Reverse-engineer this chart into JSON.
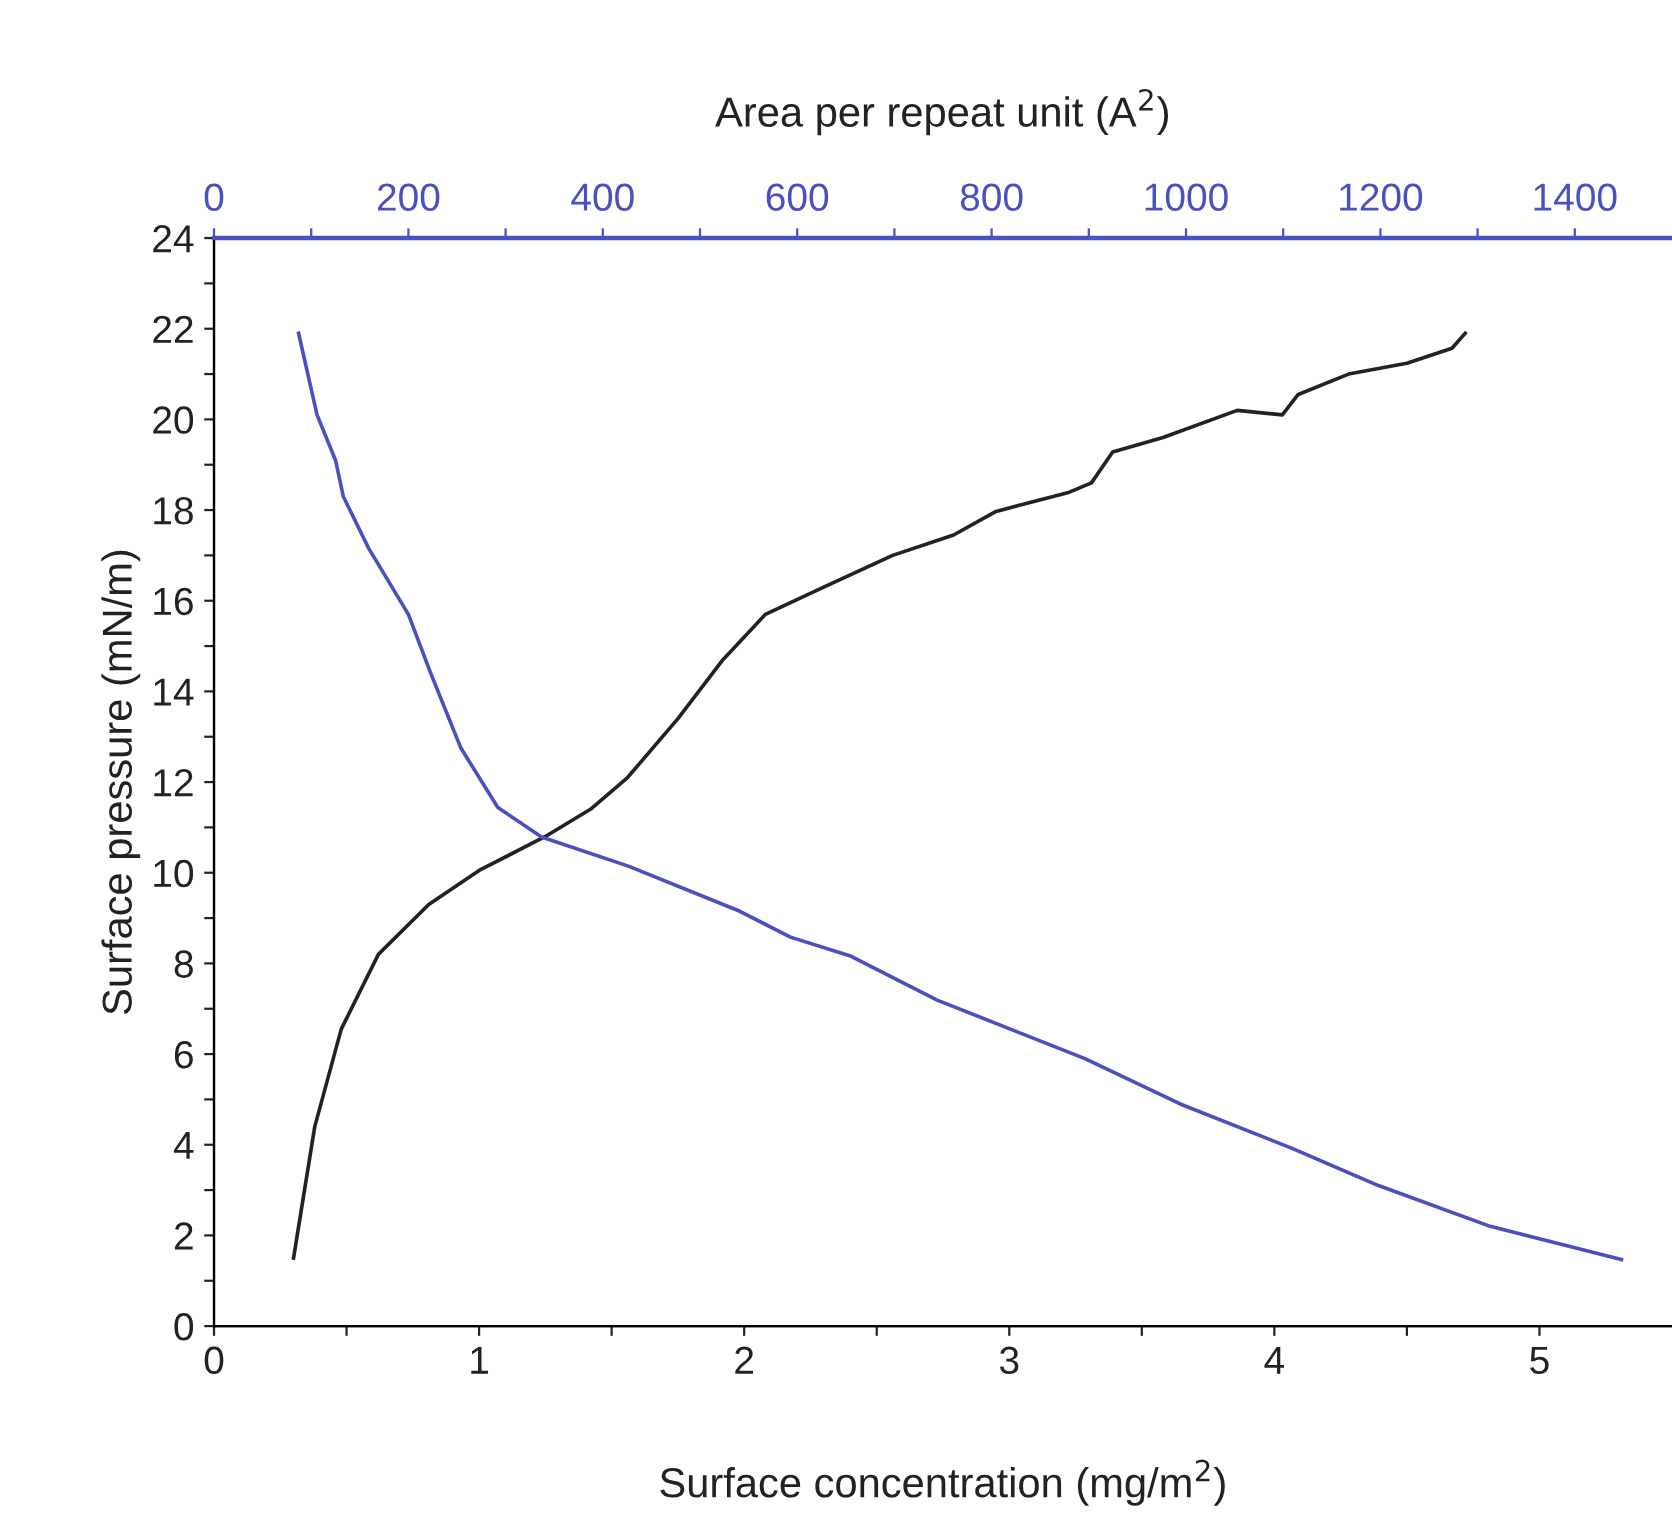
{
  "chart_data": {
    "type": "line",
    "xlabel": "Surface concentration (mg/m$^{2}$)",
    "ylabel": "Surface pressure (mN/m)",
    "x2label": "Area per repeat unit (A$^{2}$)",
    "xlim": [
      0,
      5.5
    ],
    "xticks": [
      0,
      {
        "value": 0.5,
        "label": null
      },
      1,
      {
        "value": 1.5,
        "label": null
      },
      2,
      {
        "value": 2.5,
        "label": null
      },
      3,
      {
        "value": 3.5,
        "label": null
      },
      4,
      {
        "value": 4.5,
        "label": null
      },
      5
    ],
    "x2lim": [
      0,
      1500
    ],
    "x2ticks": [
      0,
      {
        "value": 100,
        "label": null
      },
      200,
      {
        "value": 300,
        "label": null
      },
      400,
      {
        "value": 500,
        "label": null
      },
      600,
      {
        "value": 700,
        "label": null
      },
      800,
      {
        "value": 900,
        "label": null
      },
      1000,
      {
        "value": 1100,
        "label": null
      },
      1200,
      {
        "value": 1300,
        "label": null
      },
      1400
    ],
    "ylim": [
      0,
      24
    ],
    "yticks": [
      0,
      {
        "value": 1,
        "label": null
      },
      2,
      {
        "value": 3,
        "label": null
      },
      4,
      {
        "value": 5,
        "label": null
      },
      6,
      {
        "value": 7,
        "label": null
      },
      8,
      {
        "value": 9,
        "label": null
      },
      10,
      {
        "value": 11,
        "label": null
      },
      12,
      {
        "value": 13,
        "label": null
      },
      14,
      {
        "value": 15,
        "label": null
      },
      16,
      {
        "value": 17,
        "label": null
      },
      18,
      {
        "value": 19,
        "label": null
      },
      20,
      {
        "value": 21,
        "label": null
      },
      22,
      {
        "value": 23,
        "label": null
      },
      24
    ],
    "grid": false,
    "marker": "none",
    "line_style": "solid",
    "series": [
      {
        "color": "#222222",
        "x": [
          0.3,
          0.38,
          0.48,
          0.62,
          0.81,
          1.0,
          1.25,
          1.42,
          1.56,
          1.75,
          1.92,
          2.08,
          2.3,
          2.56,
          2.79,
          2.95,
          3.22,
          3.31,
          3.39,
          3.58,
          3.86,
          4.03,
          4.09,
          4.28,
          4.5,
          4.67,
          4.72
        ],
        "values": [
          1.5,
          4.4,
          6.55,
          8.2,
          9.3,
          10.05,
          10.8,
          11.4,
          12.1,
          13.4,
          14.7,
          15.7,
          16.3,
          17.0,
          17.45,
          17.97,
          18.38,
          18.6,
          19.28,
          19.6,
          20.2,
          20.1,
          20.55,
          21.0,
          21.24,
          21.57,
          21.9
        ]
      },
      {
        "color": "#4a50c0",
        "axis": "x2",
        "x": [
          87,
          106,
          125,
          133,
          159,
          200,
          223,
          254,
          292,
          337,
          427,
          541,
          593,
          654,
          744,
          896,
          994,
          1108,
          1198,
          1313,
          1448
        ],
        "values": [
          21.9,
          20.1,
          19.1,
          18.3,
          17.16,
          15.7,
          14.4,
          12.75,
          11.44,
          10.79,
          10.14,
          9.15,
          8.58,
          8.17,
          7.19,
          5.9,
          4.9,
          3.93,
          3.1,
          2.2,
          1.47
        ]
      }
    ]
  }
}
